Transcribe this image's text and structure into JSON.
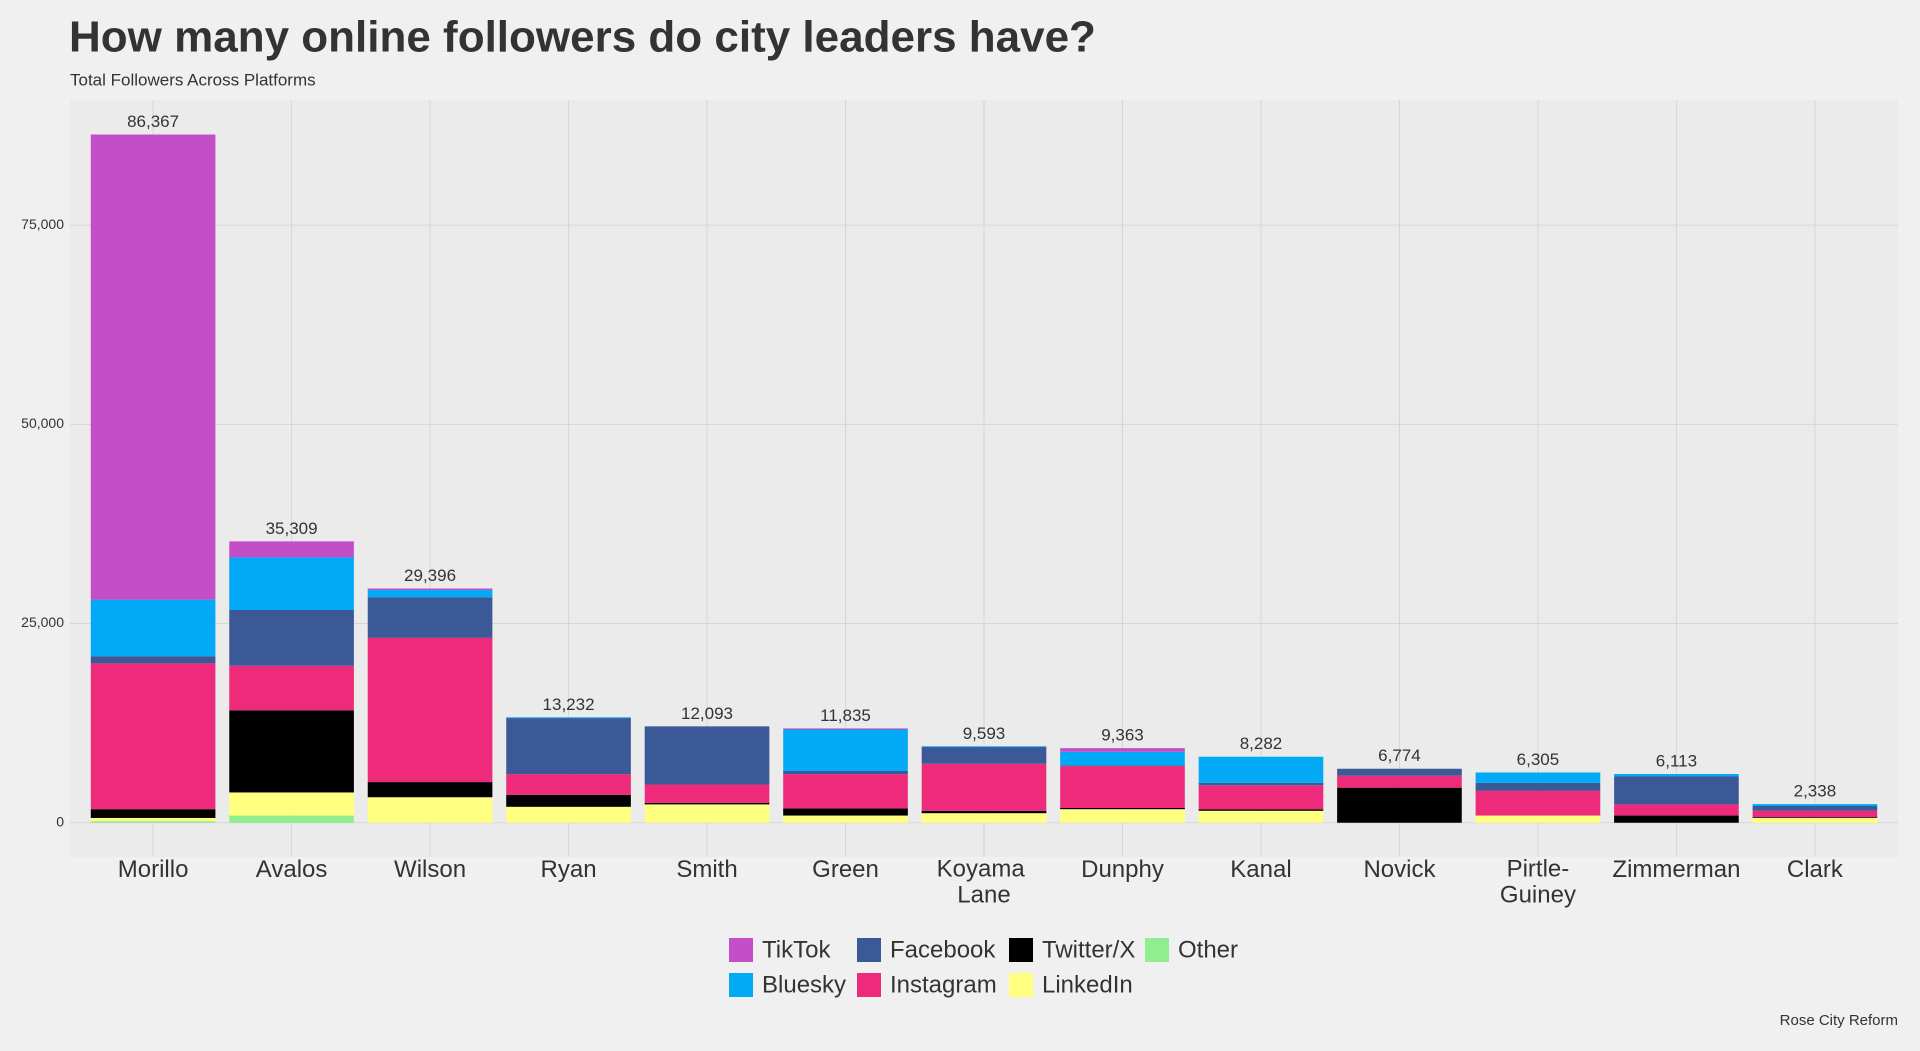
{
  "chart_data": {
    "type": "stacked_bar",
    "title": "How many online followers do city leaders have?",
    "subtitle": "Total Followers Across Platforms",
    "caption": "Rose City Reform",
    "categories": [
      "Morillo",
      "Avalos",
      "Wilson",
      "Ryan",
      "Smith",
      "Green",
      "Koyama Lane",
      "Dunphy",
      "Kanal",
      "Novick",
      "Pirtle-Guiney",
      "Zimmerman",
      "Clark"
    ],
    "series": [
      {
        "name": "TikTok",
        "color": "#c44dc8",
        "values": [
          58367,
          2009,
          196,
          0,
          0,
          135,
          0,
          463,
          0,
          0,
          0,
          0,
          0
        ]
      },
      {
        "name": "Bluesky",
        "color": "#02a9f4",
        "values": [
          7100,
          6600,
          900,
          100,
          0,
          5200,
          93,
          1700,
          3282,
          0,
          1305,
          313,
          238
        ]
      },
      {
        "name": "Facebook",
        "color": "#3b5897",
        "values": [
          900,
          7000,
          5100,
          7032,
          7293,
          400,
          2100,
          100,
          300,
          874,
          1000,
          3500,
          600
        ]
      },
      {
        "name": "Instagram",
        "color": "#ee2a7b",
        "values": [
          18300,
          5600,
          18100,
          2600,
          2300,
          4300,
          5900,
          5250,
          3000,
          1500,
          3100,
          1400,
          800
        ]
      },
      {
        "name": "Twitter/X",
        "color": "#000000",
        "values": [
          1100,
          10300,
          1900,
          1500,
          200,
          900,
          300,
          150,
          200,
          4400,
          0,
          900,
          100
        ]
      },
      {
        "name": "LinkedIn",
        "color": "#ffff80",
        "values": [
          400,
          2900,
          3200,
          2000,
          2300,
          900,
          1200,
          1700,
          1500,
          0,
          900,
          0,
          600
        ]
      },
      {
        "name": "Other",
        "color": "#90ee90",
        "values": [
          200,
          900,
          0,
          0,
          0,
          0,
          0,
          0,
          0,
          0,
          0,
          0,
          0
        ]
      }
    ],
    "totals": [
      86367,
      35309,
      29396,
      13232,
      12093,
      11835,
      9593,
      9363,
      8282,
      6774,
      6305,
      6113,
      2338
    ],
    "total_labels": [
      "86,367",
      "35,309",
      "29,396",
      "13,232",
      "12,093",
      "11,835",
      "9,593",
      "9,363",
      "8,282",
      "6,774",
      "6,305",
      "6,113",
      "2,338"
    ],
    "ylim": [
      -4300,
      90700
    ],
    "yticks": [
      0,
      {
        "value": 25000,
        "label": "25,000"
      },
      {
        "value": 50000,
        "label": "50,000"
      },
      {
        "value": 75000,
        "label": "75,000"
      }
    ],
    "grid": true,
    "legend": "bottom"
  }
}
